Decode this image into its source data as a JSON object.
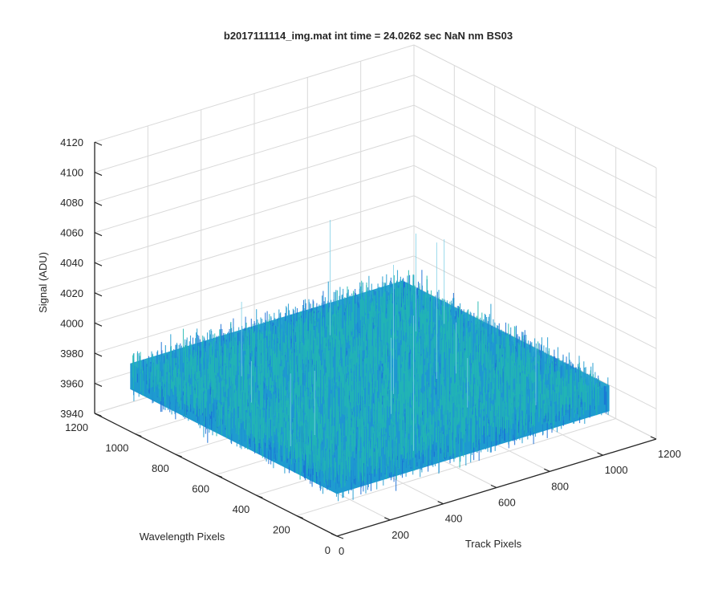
{
  "chart_data": {
    "type": "surface",
    "title": "b2017111114_img.mat int time = 24.0262 sec  NaN nm BS03",
    "xlabel": "Track Pixels",
    "ylabel": "Wavelength Pixels",
    "zlabel": "Signal (ADU)",
    "xlim": [
      0,
      1200
    ],
    "ylim": [
      0,
      1200
    ],
    "zlim": [
      3940,
      4120
    ],
    "x_ticks": [
      "0",
      "200",
      "400",
      "600",
      "800",
      "1000",
      "1200"
    ],
    "y_ticks": [
      "0",
      "200",
      "400",
      "600",
      "800",
      "1000",
      "1200"
    ],
    "z_ticks": [
      "3940",
      "3960",
      "3980",
      "4000",
      "4020",
      "4040",
      "4060",
      "4080",
      "4100",
      "4120"
    ],
    "surface": {
      "x_extent": [
        0,
        1024
      ],
      "y_extent": [
        0,
        1024
      ],
      "signal_mean": 3980,
      "signal_typical_range": [
        3965,
        3995
      ],
      "signal_spike_max": 4075
    },
    "grid": true,
    "colormap": "parula",
    "colors": {
      "low": "#1a6fd6",
      "mid": "#1f9bd0",
      "high": "#22b8b0",
      "axis": "#262626",
      "grid": "#d9d9d9"
    }
  }
}
